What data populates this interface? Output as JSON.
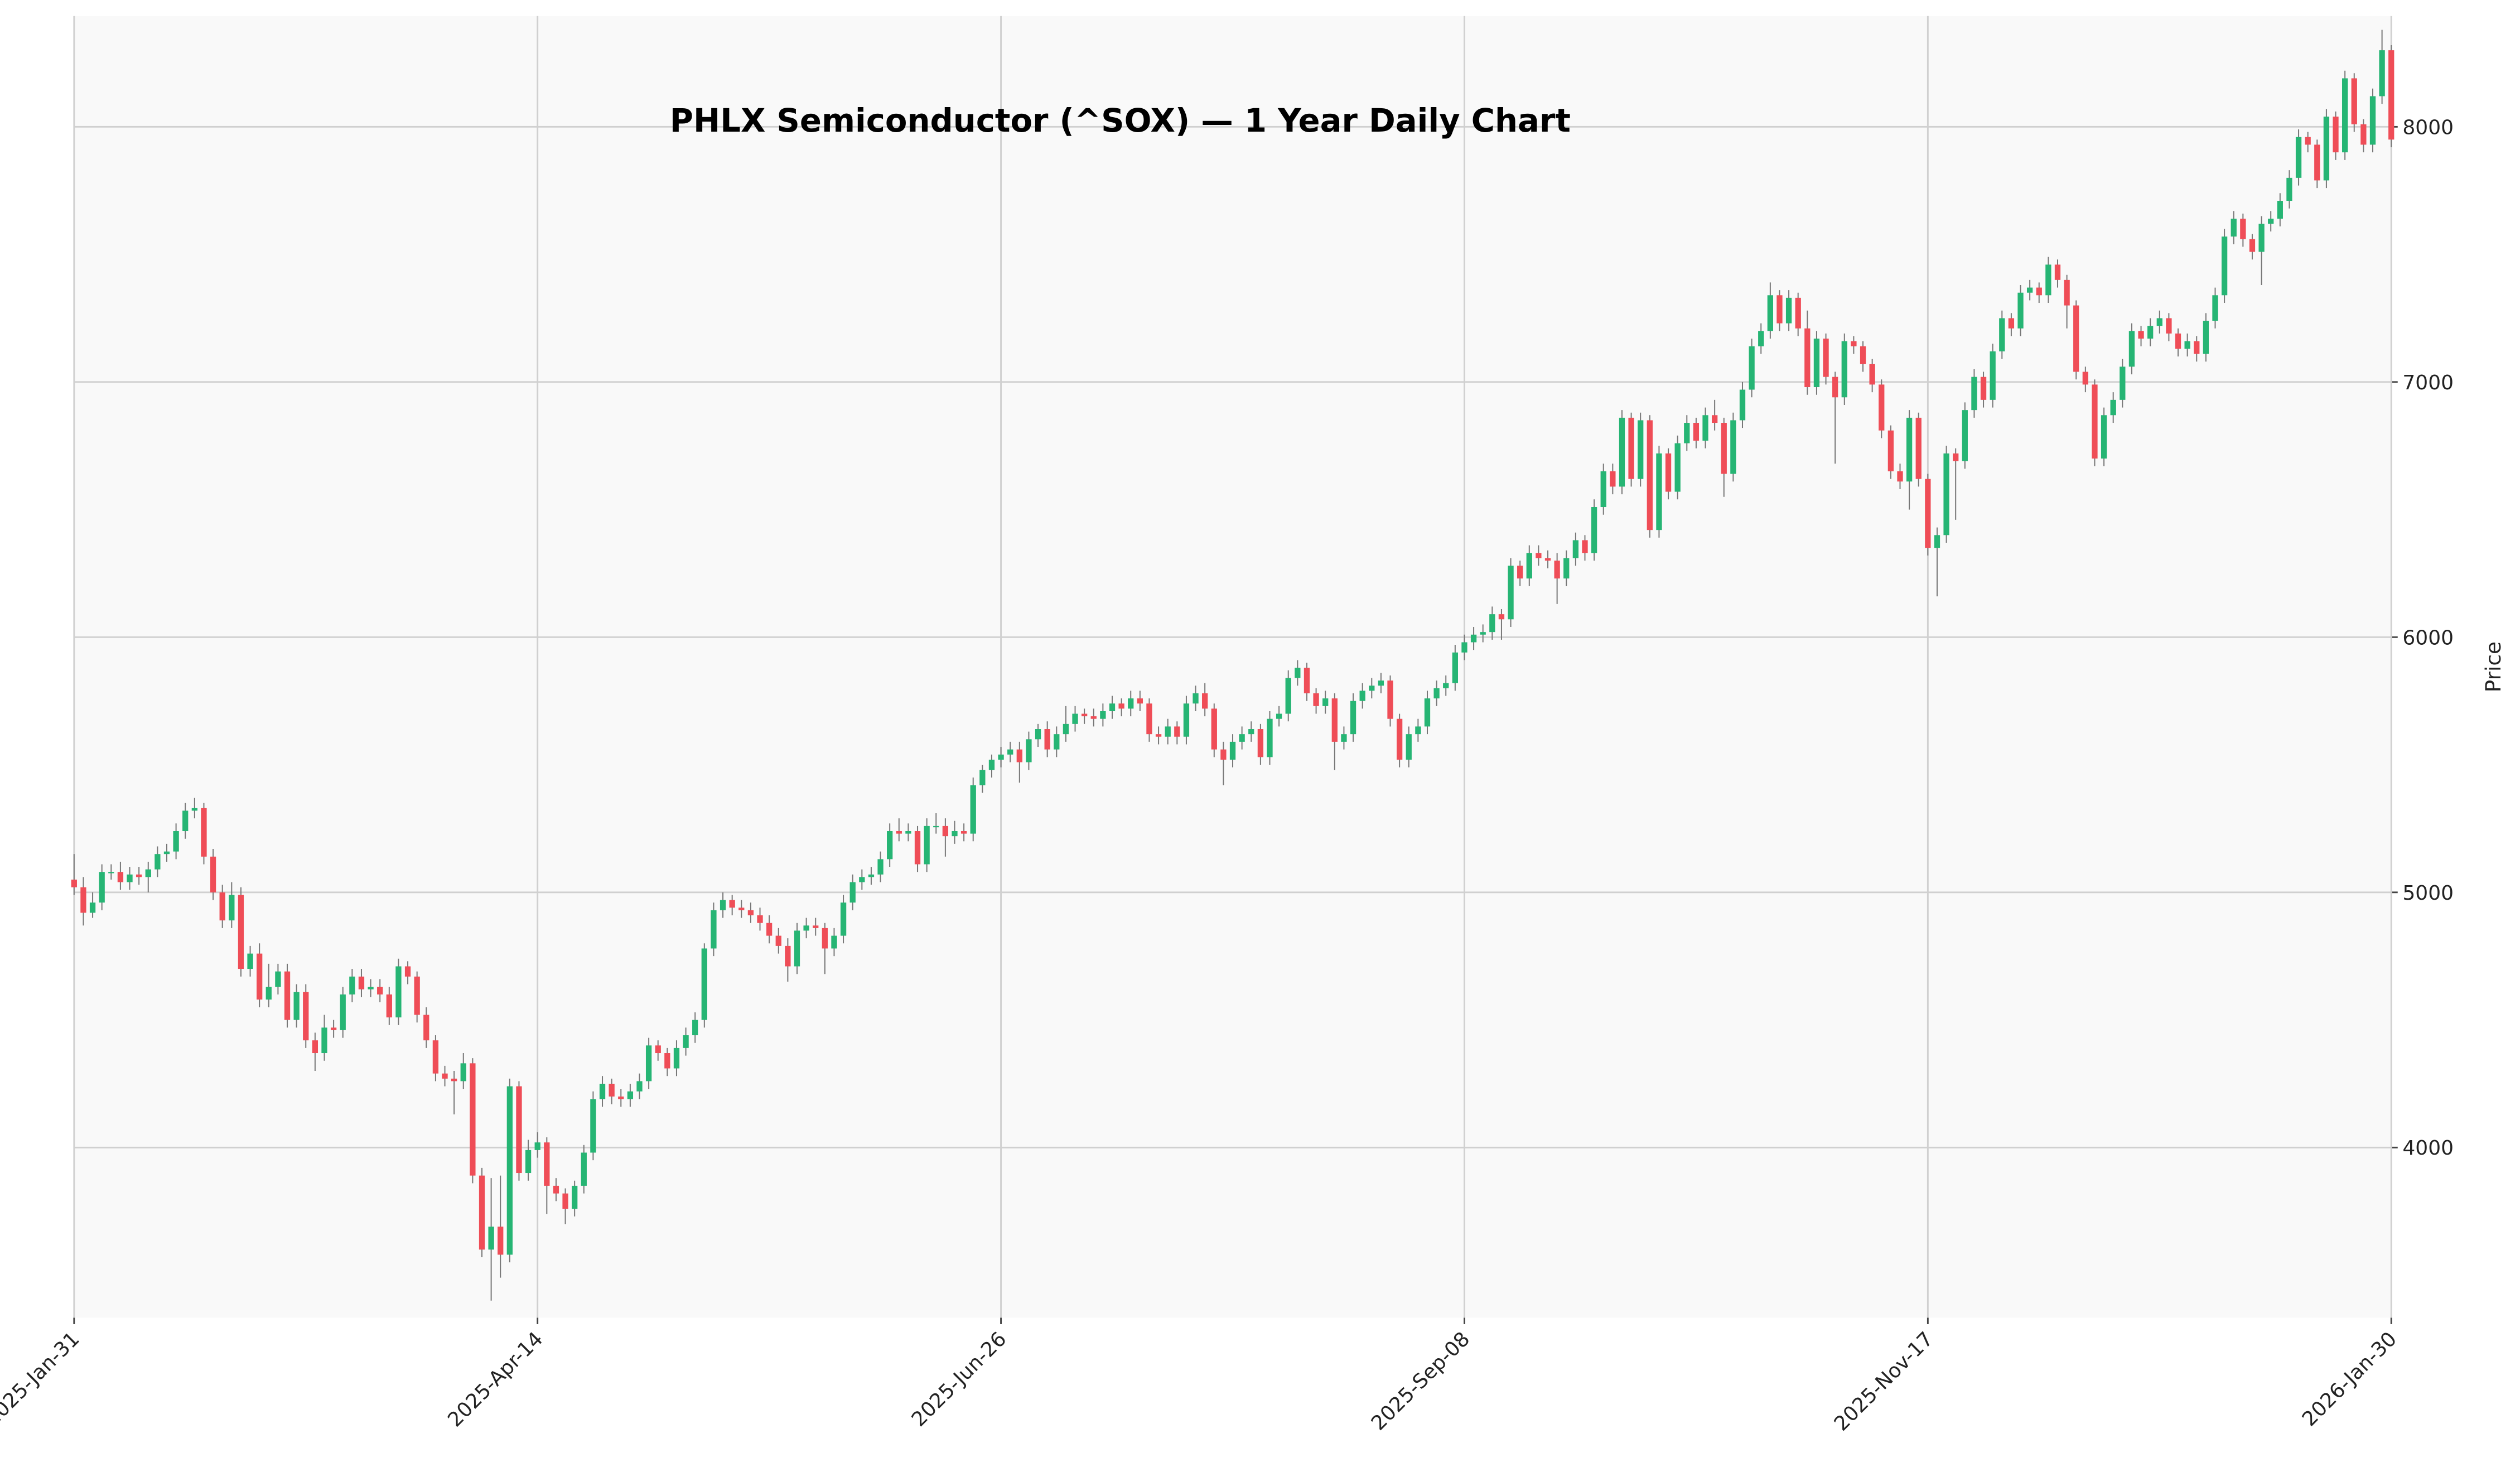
{
  "chart_data": {
    "type": "candlestick",
    "title": "PHLX Semiconductor (^SOX) — 1 Year Daily Chart",
    "ylabel": "Price",
    "up_color": "#26b574",
    "down_color": "#ef4d57",
    "wick_color": "#777777",
    "grid": true,
    "ylim": [
      3333,
      8434
    ],
    "yticks": [
      4000,
      5000,
      6000,
      7000,
      8000
    ],
    "categories": [
      "2025-Jan-31",
      null,
      null,
      null,
      null,
      null,
      null,
      null,
      null,
      null,
      null,
      null,
      null,
      null,
      null,
      null,
      null,
      null,
      null,
      null,
      null,
      null,
      null,
      null,
      null,
      null,
      null,
      null,
      null,
      null,
      null,
      null,
      null,
      null,
      null,
      null,
      null,
      null,
      null,
      null,
      null,
      null,
      null,
      null,
      null,
      null,
      null,
      null,
      null,
      null,
      "2025-Apr-14",
      null,
      null,
      null,
      null,
      null,
      null,
      null,
      null,
      null,
      null,
      null,
      null,
      null,
      null,
      null,
      null,
      null,
      null,
      null,
      null,
      null,
      null,
      null,
      null,
      null,
      null,
      null,
      null,
      null,
      null,
      null,
      null,
      null,
      null,
      null,
      null,
      null,
      null,
      null,
      null,
      null,
      null,
      null,
      null,
      null,
      null,
      null,
      null,
      null,
      "2025-Jun-26",
      null,
      null,
      null,
      null,
      null,
      null,
      null,
      null,
      null,
      null,
      null,
      null,
      null,
      null,
      null,
      null,
      null,
      null,
      null,
      null,
      null,
      null,
      null,
      null,
      null,
      null,
      null,
      null,
      null,
      null,
      null,
      null,
      null,
      null,
      null,
      null,
      null,
      null,
      null,
      null,
      null,
      null,
      null,
      null,
      null,
      null,
      null,
      null,
      null,
      "2025-Sep-08",
      null,
      null,
      null,
      null,
      null,
      null,
      null,
      null,
      null,
      null,
      null,
      null,
      null,
      null,
      null,
      null,
      null,
      null,
      null,
      null,
      null,
      null,
      null,
      null,
      null,
      null,
      null,
      null,
      null,
      null,
      null,
      null,
      null,
      null,
      null,
      null,
      null,
      null,
      null,
      null,
      null,
      null,
      null,
      null,
      null,
      null,
      null,
      null,
      null,
      "2025-Nov-17",
      null,
      null,
      null,
      null,
      null,
      null,
      null,
      null,
      null,
      null,
      null,
      null,
      null,
      null,
      null,
      null,
      null,
      null,
      null,
      null,
      null,
      null,
      null,
      null,
      null,
      null,
      null,
      null,
      null,
      null,
      null,
      null,
      null,
      null,
      null,
      null,
      null,
      null,
      null,
      null,
      null,
      null,
      null,
      null,
      null,
      null,
      null,
      null,
      null,
      "2026-Jan-30"
    ],
    "open": [
      5050,
      5020,
      4920,
      4960,
      5080,
      5080,
      5040,
      5070,
      5060,
      5090,
      5150,
      5160,
      5240,
      5320,
      5330,
      5140,
      5000,
      4890,
      4990,
      4700,
      4760,
      4580,
      4630,
      4690,
      4500,
      4610,
      4420,
      4370,
      4470,
      4460,
      4600,
      4670,
      4620,
      4630,
      4600,
      4510,
      4710,
      4670,
      4520,
      4420,
      4290,
      4270,
      4260,
      4330,
      3890,
      3600,
      3690,
      3580,
      4240,
      3900,
      3990,
      4020,
      3850,
      3820,
      3760,
      3850,
      3980,
      4190,
      4250,
      4200,
      4190,
      4220,
      4260,
      4400,
      4370,
      4310,
      4390,
      4440,
      4500,
      4780,
      4930,
      4970,
      4940,
      4930,
      4910,
      4880,
      4830,
      4790,
      4710,
      4850,
      4870,
      4860,
      4780,
      4830,
      4960,
      5040,
      5060,
      5070,
      5130,
      5240,
      5230,
      5240,
      5110,
      5260,
      5260,
      5220,
      5240,
      5230,
      5420,
      5480,
      5520,
      5540,
      5560,
      5510,
      5600,
      5640,
      5560,
      5620,
      5660,
      5700,
      5690,
      5680,
      5710,
      5740,
      5720,
      5760,
      5740,
      5620,
      5610,
      5650,
      5610,
      5740,
      5780,
      5720,
      5560,
      5520,
      5590,
      5620,
      5640,
      5530,
      5680,
      5700,
      5840,
      5880,
      5780,
      5730,
      5760,
      5590,
      5620,
      5750,
      5790,
      5810,
      5830,
      5680,
      5520,
      5620,
      5650,
      5760,
      5800,
      5820,
      5940,
      5980,
      6010,
      6020,
      6090,
      6070,
      6280,
      6230,
      6330,
      6310,
      6300,
      6230,
      6310,
      6380,
      6330,
      6510,
      6650,
      6590,
      6860,
      6620,
      6850,
      6420,
      6720,
      6570,
      6760,
      6840,
      6770,
      6870,
      6840,
      6640,
      6850,
      6970,
      7140,
      7200,
      7340,
      7230,
      7330,
      7210,
      6980,
      7170,
      7020,
      6940,
      7160,
      7140,
      7070,
      6990,
      6810,
      6650,
      6610,
      6860,
      6620,
      6350,
      6400,
      6720,
      6690,
      6890,
      7020,
      6930,
      7120,
      7250,
      7210,
      7350,
      7370,
      7340,
      7460,
      7400,
      7300,
      7040,
      6990,
      6700,
      6870,
      6930,
      7060,
      7200,
      7170,
      7220,
      7250,
      7190,
      7130,
      7160,
      7110,
      7240,
      7340,
      7570,
      7640,
      7560,
      7510,
      7620,
      7640,
      7710,
      7800,
      7960,
      7930,
      7790,
      8040,
      7900,
      8190,
      8010,
      7930,
      8120,
      8300
    ],
    "high": [
      5150,
      5060,
      5000,
      5110,
      5110,
      5120,
      5100,
      5100,
      5120,
      5180,
      5190,
      5270,
      5350,
      5370,
      5350,
      5170,
      5030,
      5040,
      5020,
      4790,
      4800,
      4720,
      4720,
      4720,
      4640,
      4640,
      4450,
      4520,
      4500,
      4630,
      4700,
      4700,
      4660,
      4660,
      4630,
      4740,
      4730,
      4690,
      4550,
      4440,
      4320,
      4300,
      4370,
      4350,
      3920,
      3880,
      3890,
      4270,
      4260,
      4030,
      4060,
      4040,
      3880,
      3840,
      3870,
      4010,
      4220,
      4280,
      4270,
      4230,
      4250,
      4290,
      4430,
      4420,
      4390,
      4420,
      4470,
      4530,
      4800,
      4960,
      5000,
      4990,
      4970,
      4960,
      4940,
      4910,
      4860,
      4820,
      4880,
      4900,
      4900,
      4880,
      4860,
      4990,
      5070,
      5090,
      5100,
      5160,
      5270,
      5290,
      5270,
      5260,
      5290,
      5310,
      5290,
      5280,
      5270,
      5450,
      5500,
      5540,
      5570,
      5590,
      5590,
      5630,
      5660,
      5670,
      5650,
      5730,
      5730,
      5720,
      5720,
      5740,
      5770,
      5760,
      5790,
      5790,
      5760,
      5650,
      5680,
      5670,
      5770,
      5810,
      5820,
      5740,
      5590,
      5620,
      5650,
      5670,
      5660,
      5710,
      5730,
      5870,
      5910,
      5900,
      5800,
      5790,
      5780,
      5650,
      5780,
      5820,
      5840,
      5860,
      5850,
      5700,
      5650,
      5680,
      5790,
      5830,
      5850,
      5970,
      6010,
      6040,
      6050,
      6120,
      6110,
      6310,
      6300,
      6360,
      6360,
      6340,
      6330,
      6340,
      6410,
      6400,
      6540,
      6680,
      6680,
      6890,
      6880,
      6880,
      6870,
      6750,
      6740,
      6790,
      6870,
      6860,
      6900,
      6930,
      6860,
      6880,
      7000,
      7170,
      7230,
      7390,
      7360,
      7360,
      7350,
      7280,
      7200,
      7190,
      7040,
      7190,
      7180,
      7160,
      7090,
      7010,
      6830,
      6680,
      6890,
      6880,
      6640,
      6430,
      6750,
      6740,
      6920,
      7050,
      7040,
      7150,
      7280,
      7270,
      7380,
      7400,
      7390,
      7490,
      7480,
      7420,
      7320,
      7060,
      7010,
      6900,
      6960,
      7090,
      7230,
      7220,
      7250,
      7280,
      7270,
      7210,
      7190,
      7180,
      7270,
      7370,
      7600,
      7670,
      7660,
      7580,
      7650,
      7670,
      7740,
      7830,
      7990,
      7980,
      7950,
      8070,
      8060,
      8220,
      8210,
      8030,
      8150,
      8380,
      8320
    ],
    "low": [
      4990,
      4870,
      4900,
      4930,
      5050,
      5010,
      5010,
      5030,
      5000,
      5060,
      5120,
      5130,
      5210,
      5290,
      5110,
      4970,
      4860,
      4860,
      4670,
      4670,
      4550,
      4550,
      4600,
      4470,
      4470,
      4390,
      4300,
      4340,
      4430,
      4430,
      4570,
      4590,
      4590,
      4570,
      4480,
      4480,
      4640,
      4490,
      4390,
      4260,
      4240,
      4130,
      4230,
      3860,
      3570,
      3400,
      3490,
      3550,
      3870,
      3870,
      3960,
      3740,
      3790,
      3700,
      3730,
      3820,
      3950,
      4160,
      4170,
      4160,
      4160,
      4190,
      4230,
      4340,
      4280,
      4280,
      4360,
      4410,
      4470,
      4750,
      4900,
      4910,
      4900,
      4880,
      4850,
      4800,
      4760,
      4650,
      4680,
      4820,
      4830,
      4680,
      4750,
      4800,
      4930,
      5010,
      5030,
      5040,
      5100,
      5200,
      5200,
      5080,
      5080,
      5230,
      5140,
      5190,
      5200,
      5200,
      5390,
      5450,
      5490,
      5510,
      5430,
      5480,
      5570,
      5530,
      5530,
      5590,
      5630,
      5660,
      5650,
      5650,
      5680,
      5690,
      5690,
      5710,
      5590,
      5580,
      5580,
      5580,
      5580,
      5710,
      5690,
      5530,
      5420,
      5490,
      5560,
      5590,
      5500,
      5500,
      5650,
      5670,
      5810,
      5750,
      5700,
      5700,
      5480,
      5560,
      5590,
      5720,
      5760,
      5780,
      5650,
      5490,
      5490,
      5590,
      5620,
      5730,
      5770,
      5790,
      5910,
      5950,
      5980,
      5990,
      5990,
      6040,
      6200,
      6200,
      6280,
      6270,
      6130,
      6200,
      6280,
      6300,
      6300,
      6480,
      6560,
      6560,
      6590,
      6590,
      6390,
      6390,
      6540,
      6540,
      6730,
      6740,
      6740,
      6810,
      6550,
      6610,
      6820,
      6940,
      7110,
      7170,
      7200,
      7200,
      7180,
      6950,
      6950,
      6990,
      6680,
      6910,
      7110,
      7040,
      6960,
      6780,
      6620,
      6580,
      6500,
      6590,
      6320,
      6160,
      6370,
      6460,
      6660,
      6860,
      6900,
      6900,
      7090,
      7180,
      7180,
      7320,
      7310,
      7310,
      7370,
      7210,
      7010,
      6960,
      6670,
      6670,
      6840,
      6900,
      7030,
      7140,
      7140,
      7190,
      7160,
      7100,
      7100,
      7080,
      7080,
      7210,
      7310,
      7540,
      7530,
      7480,
      7380,
      7590,
      7610,
      7680,
      7770,
      7900,
      7760,
      7760,
      7870,
      7870,
      7980,
      7900,
      7900,
      8090,
      7920
    ],
    "close": [
      5020,
      4920,
      4960,
      5080,
      5080,
      5040,
      5070,
      5060,
      5090,
      5150,
      5160,
      5240,
      5320,
      5330,
      5140,
      5000,
      4890,
      4990,
      4700,
      4760,
      4580,
      4630,
      4690,
      4500,
      4610,
      4420,
      4370,
      4470,
      4460,
      4600,
      4670,
      4620,
      4630,
      4600,
      4510,
      4710,
      4670,
      4520,
      4420,
      4290,
      4270,
      4260,
      4330,
      3890,
      3600,
      3690,
      3580,
      4240,
      3900,
      3990,
      4020,
      3850,
      3820,
      3760,
      3850,
      3980,
      4190,
      4250,
      4200,
      4190,
      4220,
      4260,
      4400,
      4370,
      4310,
      4390,
      4440,
      4500,
      4780,
      4930,
      4970,
      4940,
      4930,
      4910,
      4880,
      4830,
      4790,
      4710,
      4850,
      4870,
      4860,
      4780,
      4830,
      4960,
      5040,
      5060,
      5070,
      5130,
      5240,
      5230,
      5240,
      5110,
      5260,
      5260,
      5220,
      5240,
      5230,
      5420,
      5480,
      5520,
      5540,
      5560,
      5510,
      5600,
      5640,
      5560,
      5620,
      5660,
      5700,
      5690,
      5680,
      5710,
      5740,
      5720,
      5760,
      5740,
      5620,
      5610,
      5650,
      5610,
      5740,
      5780,
      5720,
      5560,
      5520,
      5590,
      5620,
      5640,
      5530,
      5680,
      5700,
      5840,
      5880,
      5780,
      5730,
      5760,
      5590,
      5620,
      5750,
      5790,
      5810,
      5830,
      5680,
      5520,
      5620,
      5650,
      5760,
      5800,
      5820,
      5940,
      5980,
      6010,
      6020,
      6090,
      6070,
      6280,
      6230,
      6330,
      6310,
      6300,
      6230,
      6310,
      6380,
      6330,
      6510,
      6650,
      6590,
      6860,
      6620,
      6850,
      6420,
      6720,
      6570,
      6760,
      6840,
      6770,
      6870,
      6840,
      6640,
      6850,
      6970,
      7140,
      7200,
      7340,
      7230,
      7330,
      7210,
      6980,
      7170,
      7020,
      6940,
      7160,
      7140,
      7070,
      6990,
      6810,
      6650,
      6610,
      6860,
      6620,
      6350,
      6400,
      6720,
      6690,
      6890,
      7020,
      6930,
      7120,
      7250,
      7210,
      7350,
      7370,
      7340,
      7460,
      7400,
      7300,
      7040,
      6990,
      6700,
      6870,
      6930,
      7060,
      7200,
      7170,
      7220,
      7250,
      7190,
      7130,
      7160,
      7110,
      7240,
      7340,
      7570,
      7640,
      7560,
      7510,
      7620,
      7640,
      7710,
      7800,
      7960,
      7930,
      7790,
      8040,
      7900,
      8190,
      8010,
      7930,
      8120,
      8300,
      7950
    ]
  }
}
